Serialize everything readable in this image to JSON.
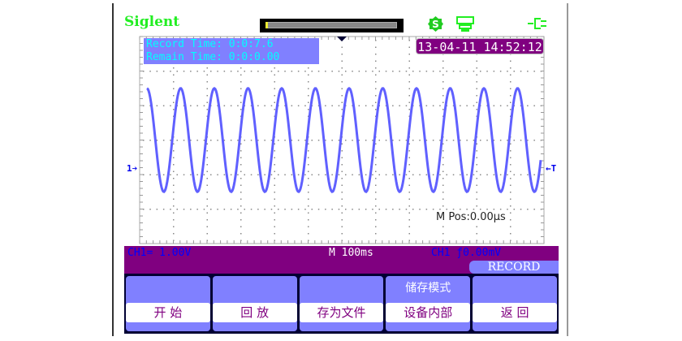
{
  "brand": "Siglent",
  "top_icons": [
    "usb-storage-icon",
    "printer-icon",
    "power-plug-icon"
  ],
  "record_info": {
    "record_time": "Record Time: 0:0:7.6",
    "remain_time": "Remain Time: 0:0:0.00"
  },
  "datetime": "13-04-11 14:52:12",
  "measure": "M Pos:0.00μs",
  "markers": {
    "channel": "1",
    "trigger": "T"
  },
  "status": {
    "ch1_scale": "CH1= 1.00V",
    "timebase": "M 100ms",
    "trigger": "CH1 ƒ0.00mV",
    "mode": "RECORD"
  },
  "softkeys": [
    {
      "top": "",
      "value": "开 始"
    },
    {
      "top": "",
      "value": "回 放"
    },
    {
      "top": "",
      "value": "存为文件"
    },
    {
      "top": "储存模式",
      "value": "设备内部"
    },
    {
      "top": "",
      "value": "返 回"
    }
  ],
  "colors": {
    "trace": "#6060ff",
    "status_bar": "#800080",
    "softkey": "#8080ff",
    "brand": "#22ee22"
  },
  "waveform": {
    "type": "sine",
    "cycles_on_screen": 12,
    "amplitude_div": 1.5
  }
}
